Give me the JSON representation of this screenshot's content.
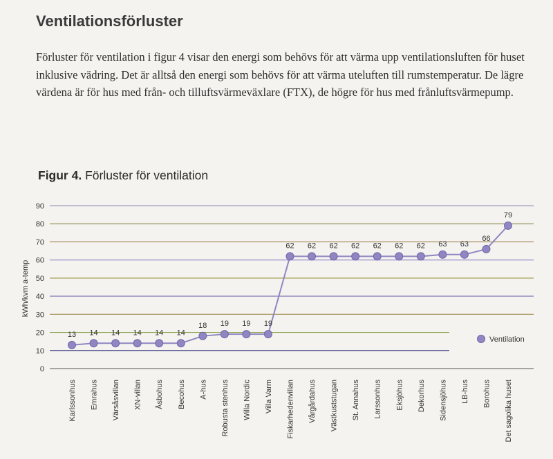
{
  "section": {
    "heading": "Ventilationsförluster",
    "paragraph": "Förluster för ventilation i figur 4 visar den energi som behövs för att värma upp ventilationsluften för huset inklusive vädring. Det är alltså den energi som behövs för att värma uteluften till rumstemperatur. De lägre värdena är för hus med från- och tilluftsvärmeväxlare (FTX), de högre för hus med frånluftsvärmepump."
  },
  "figure": {
    "label": "Figur 4.",
    "title": "Förluster för ventilation"
  },
  "chart_data": {
    "type": "line",
    "ylabel": "kWh/kvm a-temp",
    "xlabel": "",
    "ylim": [
      0,
      90
    ],
    "yticks": [
      0,
      10,
      20,
      30,
      40,
      50,
      60,
      70,
      80,
      90
    ],
    "grid": true,
    "legend_position": "right",
    "categories": [
      "Karlssonhus",
      "Emrahus",
      "Värsåsvillan",
      "XN-villan",
      "Åsbohus",
      "Becohus",
      "A-hus",
      "Robusta stenhus",
      "Willa Nordic",
      "Villa Varm",
      "Fiskarhedenvillan",
      "Vårgårdahus",
      "Västkuststugan",
      "St. Annahus",
      "Larssonhus",
      "Eksjöhus",
      "Dekorhus",
      "Sidensjöhus",
      "LB-hus",
      "Borohus",
      "Det sagolika huset"
    ],
    "series": [
      {
        "name": "Ventilation",
        "values": [
          13,
          14,
          14,
          14,
          14,
          14,
          18,
          19,
          19,
          19,
          62,
          62,
          62,
          62,
          62,
          62,
          62,
          63,
          63,
          66,
          79
        ],
        "color": "#8f86c2"
      }
    ],
    "gridline_colors": [
      "#b9b34e",
      "#2b2a78",
      "#8aa04a",
      "#9e8a4a",
      "#7b6fb0",
      "#9c9440",
      "#8b84c4",
      "#9e7a4e",
      "#8f8a4a",
      "#8a8ab0"
    ]
  }
}
